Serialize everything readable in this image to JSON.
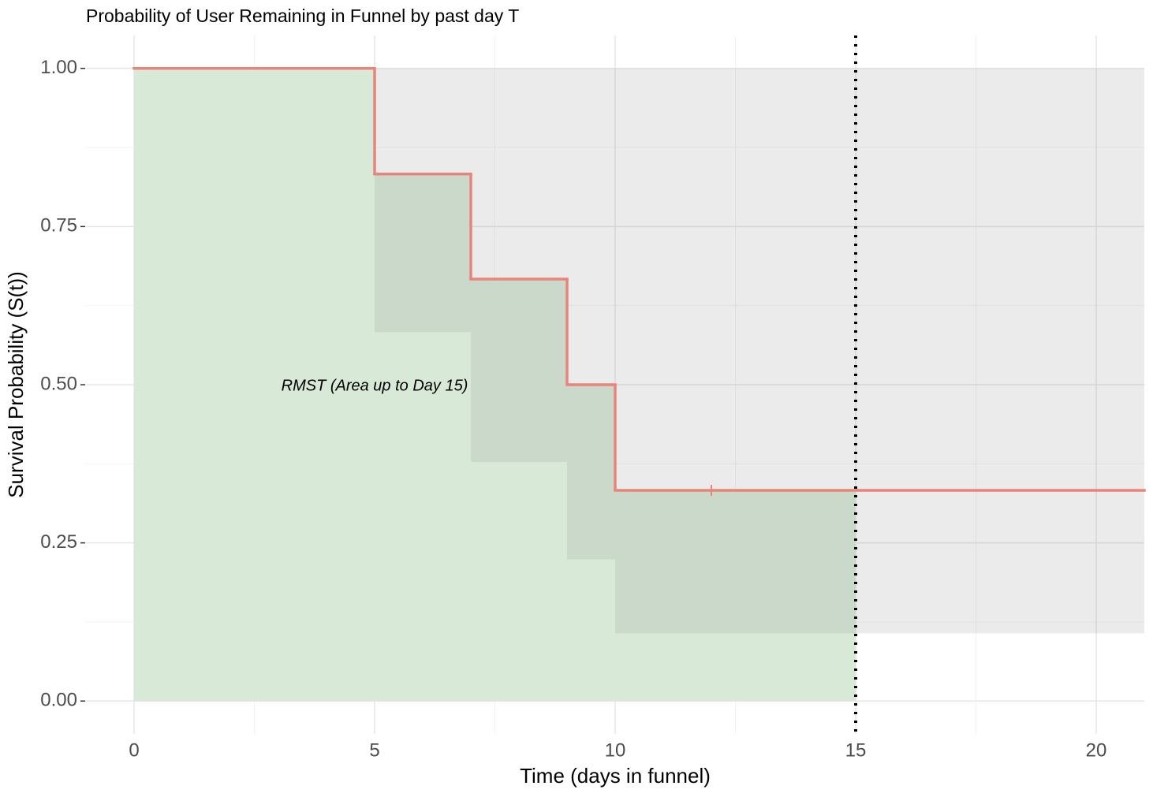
{
  "chart_data": {
    "type": "survival",
    "title": "Probability of User Remaining in Funnel by past day T",
    "x_label": "Time (days in funnel)",
    "y_label": "Survival Probability (S(t))",
    "series": [
      {
        "color": "#e8857a",
        "time": [
          0,
          5,
          7,
          9,
          10
        ],
        "surv": [
          1,
          0.833,
          0.667,
          0.5,
          0.333
        ],
        "lower": [
          1,
          0.583,
          0.378,
          0.224,
          0.107
        ],
        "upper": [
          1,
          1,
          1,
          1,
          1
        ],
        "censor_time": [
          12
        ],
        "censor_surv": [
          0.333
        ]
      }
    ],
    "ci_color": "rgba(128,128,128,0.16)",
    "rmst_tau": 15,
    "rmst_color": "#d8ead7",
    "annotation": {
      "text": "RMST (Area up to Day 15)",
      "x": 5,
      "y": 0.5
    },
    "xlim": [
      -1,
      21
    ],
    "xticks": [
      0,
      5,
      10,
      15,
      20
    ],
    "xminor": [
      2.5,
      7.5,
      12.5,
      17.5
    ],
    "ylim": [
      -0.052,
      1.052
    ],
    "yticks": [
      {
        "value": 0,
        "label": "0.00"
      },
      {
        "value": 0.25,
        "label": "0.25"
      },
      {
        "value": 0.5,
        "label": "0.50"
      },
      {
        "value": 0.75,
        "label": "0.75"
      },
      {
        "value": 1,
        "label": "1.00"
      }
    ],
    "yminor": [
      0.125,
      0.375,
      0.625,
      0.875
    ],
    "grid": true
  }
}
